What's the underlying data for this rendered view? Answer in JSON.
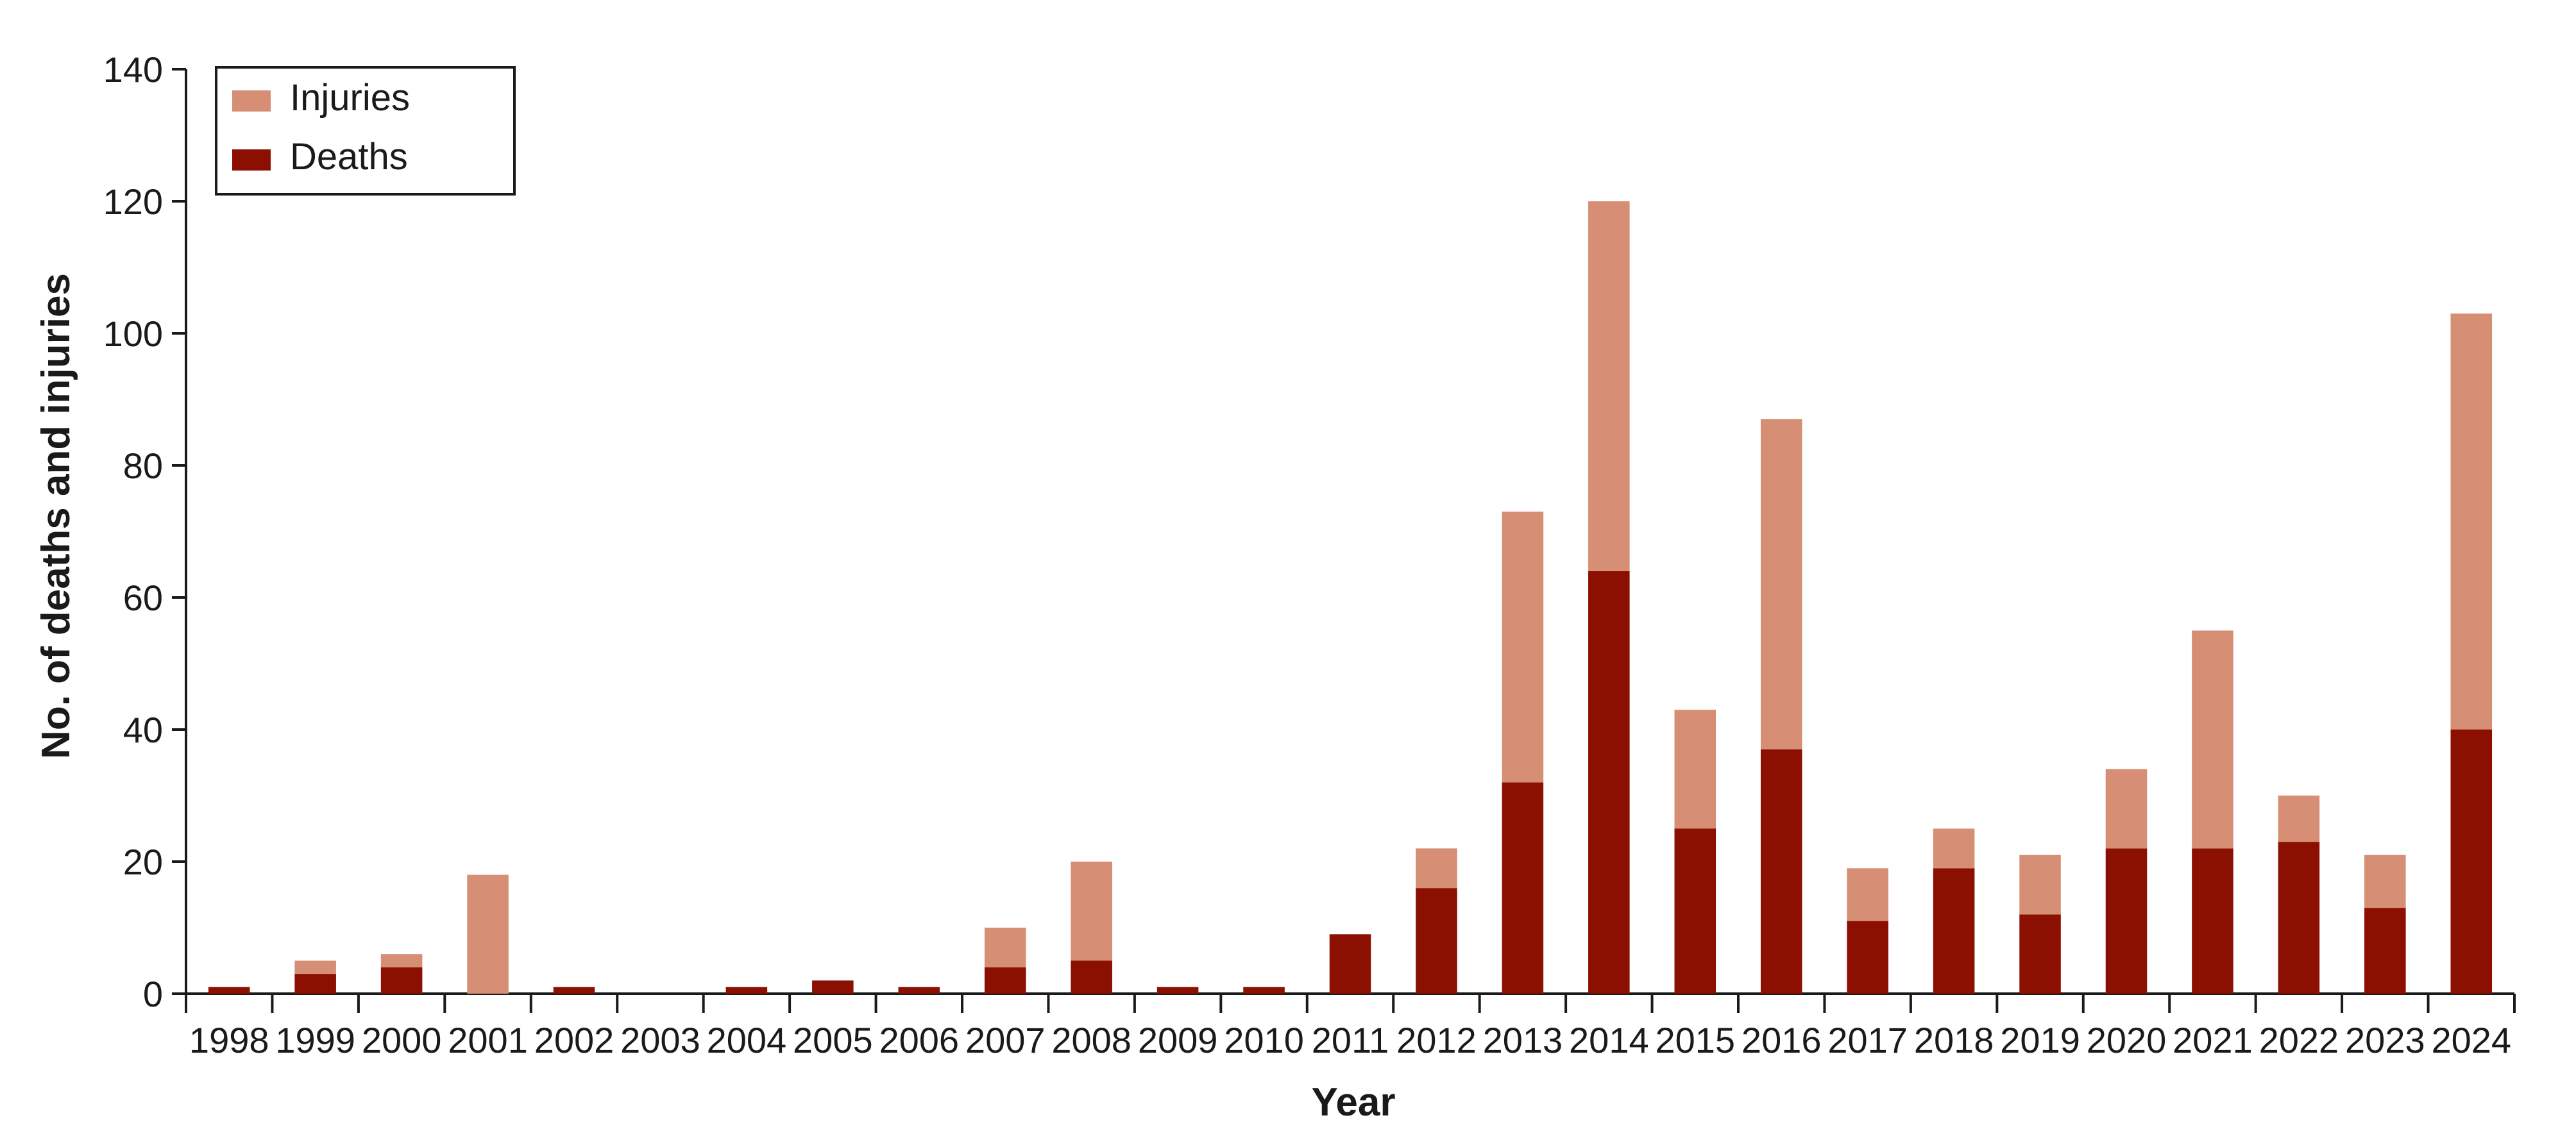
{
  "chart_data": {
    "type": "bar",
    "stacked": true,
    "title": "",
    "xlabel": "Year",
    "ylabel": "No. of deaths and injuries",
    "ylim": [
      0,
      140
    ],
    "yticks": [
      0,
      20,
      40,
      60,
      80,
      100,
      120,
      140
    ],
    "grid": false,
    "legend_position": "top-left",
    "categories": [
      "1998",
      "1999",
      "2000",
      "2001",
      "2002",
      "2003",
      "2004",
      "2005",
      "2006",
      "2007",
      "2008",
      "2009",
      "2010",
      "2011",
      "2012",
      "2013",
      "2014",
      "2015",
      "2016",
      "2017",
      "2018",
      "2019",
      "2020",
      "2021",
      "2022",
      "2023",
      "2024"
    ],
    "series": [
      {
        "name": "Deaths",
        "color": "#8b1002",
        "values": [
          1,
          3,
          4,
          0,
          1,
          0,
          1,
          2,
          1,
          4,
          5,
          1,
          1,
          9,
          16,
          32,
          64,
          25,
          37,
          11,
          19,
          12,
          22,
          22,
          23,
          13,
          40
        ]
      },
      {
        "name": "Injuries",
        "color": "#d68e74",
        "values": [
          0,
          2,
          2,
          18,
          0,
          0,
          0,
          0,
          0,
          6,
          15,
          0,
          0,
          0,
          6,
          41,
          56,
          18,
          50,
          8,
          6,
          9,
          12,
          33,
          7,
          8,
          63
        ]
      }
    ],
    "legend_order": [
      "Injuries",
      "Deaths"
    ]
  }
}
